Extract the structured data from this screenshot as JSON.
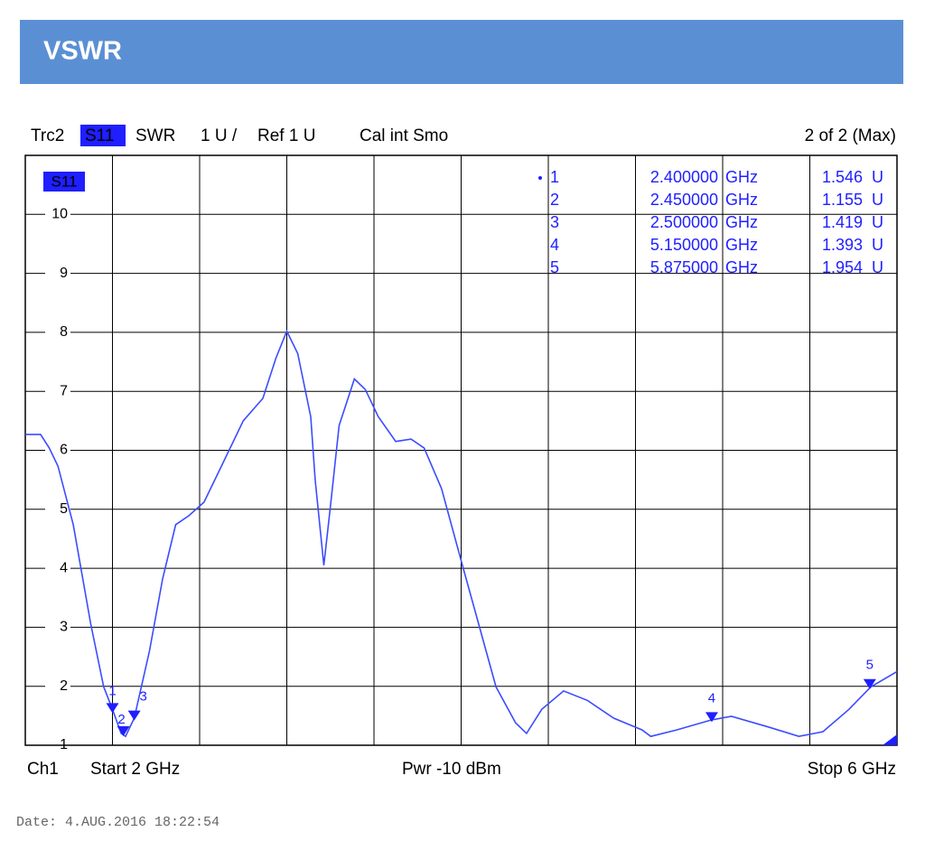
{
  "header": {
    "title": "VSWR"
  },
  "chart_data": {
    "type": "line",
    "info": {
      "trace": "Trc2",
      "param": "S11",
      "format": "SWR",
      "scale": "1 U /",
      "ref": "Ref 1 U",
      "cal": "Cal int Smo",
      "page": "2 of 2 (Max)"
    },
    "badge": "S11",
    "footer": {
      "channel": "Ch1",
      "start": "Start 2 GHz",
      "power": "Pwr -10 dBm",
      "stop": "Stop 6 GHz"
    },
    "date": "Date: 4.AUG.2016 18:22:54",
    "xlim": [
      2,
      6
    ],
    "xticks": [
      2,
      2.4,
      2.8,
      3.2,
      3.6,
      4,
      4.4,
      4.8,
      5.2,
      5.6,
      6
    ],
    "ylim": [
      1,
      11
    ],
    "yticks": [
      1,
      2,
      3,
      4,
      5,
      6,
      7,
      8,
      9,
      10
    ],
    "grid": true,
    "series": [
      {
        "color": "#3b4cff",
        "x": [
          2.0,
          2.07,
          2.11,
          2.15,
          2.22,
          2.3,
          2.36,
          2.4,
          2.44,
          2.46,
          2.5,
          2.57,
          2.63,
          2.69,
          2.75,
          2.82,
          2.9,
          3.0,
          3.09,
          3.15,
          3.2,
          3.25,
          3.31,
          3.33,
          3.37,
          3.4,
          3.44,
          3.51,
          3.56,
          3.62,
          3.7,
          3.77,
          3.83,
          3.91,
          4.0,
          4.08,
          4.16,
          4.25,
          4.3,
          4.37,
          4.47,
          4.58,
          4.7,
          4.83,
          4.87,
          4.99,
          5.15,
          5.24,
          5.41,
          5.55,
          5.66,
          5.78,
          5.88,
          6.0
        ],
        "values": [
          6.27,
          6.27,
          6.04,
          5.73,
          4.74,
          3.06,
          1.99,
          1.61,
          1.2,
          1.15,
          1.46,
          2.6,
          3.82,
          4.74,
          4.89,
          5.12,
          5.73,
          6.5,
          6.88,
          7.56,
          8.02,
          7.64,
          6.57,
          5.5,
          4.05,
          5.05,
          6.42,
          7.21,
          7.03,
          6.57,
          6.15,
          6.19,
          6.04,
          5.35,
          4.13,
          3.06,
          1.99,
          1.38,
          1.2,
          1.61,
          1.92,
          1.76,
          1.46,
          1.26,
          1.15,
          1.26,
          1.43,
          1.49,
          1.31,
          1.15,
          1.23,
          1.61,
          1.99,
          2.25
        ]
      }
    ],
    "markers": {
      "color": "#1f1fff",
      "labels": [
        "1",
        "2",
        "3",
        "4",
        "5"
      ],
      "x": [
        2.4,
        2.45,
        2.5,
        5.15,
        5.875
      ],
      "x_labels": [
        "2.400000",
        "2.450000",
        "2.500000",
        "5.150000",
        "5.875000"
      ],
      "x_units": [
        "GHz",
        "GHz",
        "GHz",
        "GHz",
        "GHz"
      ],
      "values": [
        1.546,
        1.155,
        1.419,
        1.393,
        1.954
      ],
      "units": [
        "U",
        "U",
        "U",
        "U",
        "U"
      ]
    }
  }
}
